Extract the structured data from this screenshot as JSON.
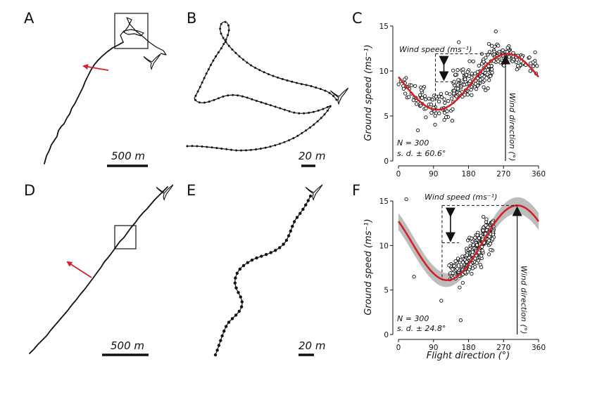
{
  "panel_labels": [
    "A",
    "B",
    "C",
    "D",
    "E",
    "F"
  ],
  "scalebars": {
    "A": "500 m",
    "B": "20 m",
    "D": "500 m",
    "E": "20 m"
  },
  "colors": {
    "fit_line": "#d62027",
    "ci_band": "#bdbdbd",
    "arrow_red": "#d62027",
    "points_stroke": "#111111"
  },
  "icons": [
    "bird-silhouette-icon"
  ],
  "chart_data": [
    {
      "panel": "C",
      "type": "scatter",
      "x_ticks": [
        "0",
        "90",
        "180",
        "270",
        "360"
      ],
      "y_ticks": [
        "0",
        "5",
        "10",
        "15"
      ],
      "xlim": [
        0,
        360
      ],
      "ylim": [
        0,
        15
      ],
      "xlabel": "",
      "ylabel": "Ground speed (ms⁻¹)",
      "annotations": {
        "wind_speed": "Wind speed (ms⁻¹)",
        "wind_direction": "Wind direction (°)",
        "n": "N = 300",
        "sd": "s. d. ± 60.6°"
      },
      "fit": {
        "mean": 8.8,
        "amplitude": 3.1,
        "peak_direction": 280
      },
      "wind_direction_marker": 275,
      "point_clouds": [
        {
          "x_range": [
            0,
            70
          ],
          "mean": 8.2,
          "spread": 1.0,
          "count": 38
        },
        {
          "x_range": [
            70,
            140
          ],
          "mean": 6.2,
          "spread": 1.0,
          "count": 45
        },
        {
          "x_range": [
            140,
            240
          ],
          "mean": 9.6,
          "spread": 1.2,
          "count": 130
        },
        {
          "x_range": [
            240,
            300
          ],
          "mean": 11.8,
          "spread": 0.6,
          "count": 55
        },
        {
          "x_range": [
            300,
            360
          ],
          "mean": 10.8,
          "spread": 0.8,
          "count": 32
        }
      ],
      "outliers": [
        [
          50,
          3.4
        ],
        [
          250,
          14.4
        ],
        [
          155,
          13.2
        ]
      ]
    },
    {
      "panel": "F",
      "type": "scatter",
      "x_ticks": [
        "0",
        "90",
        "180",
        "270",
        "360"
      ],
      "y_ticks": [
        "0",
        "5",
        "10",
        "15"
      ],
      "xlim": [
        0,
        360
      ],
      "ylim": [
        0,
        15
      ],
      "xlabel": "Flight direction (°)",
      "ylabel": "Ground speed (ms⁻¹)",
      "annotations": {
        "wind_speed": "Wind speed (ms⁻¹)",
        "wind_direction": "Wind direction (°)",
        "n": "N = 300",
        "sd": "s. d. ± 24.8°"
      },
      "fit": {
        "mean": 10.3,
        "amplitude": 4.2,
        "peak_direction": 305
      },
      "ci_halfwidth": 0.6,
      "wind_direction_marker": 305,
      "point_clouds": [
        {
          "x_range": [
            130,
            175
          ],
          "mean": 8.0,
          "spread": 0.9,
          "count": 60
        },
        {
          "x_range": [
            175,
            215
          ],
          "mean": 9.5,
          "spread": 1.1,
          "count": 150
        },
        {
          "x_range": [
            215,
            245
          ],
          "mean": 11.0,
          "spread": 1.0,
          "count": 85
        }
      ],
      "outliers": [
        [
          20,
          15.2
        ],
        [
          110,
          3.8
        ],
        [
          160,
          1.6
        ],
        [
          40,
          6.5
        ]
      ]
    }
  ]
}
